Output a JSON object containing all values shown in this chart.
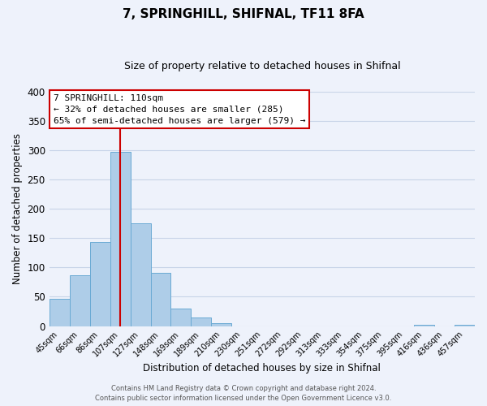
{
  "title": "7, SPRINGHILL, SHIFNAL, TF11 8FA",
  "subtitle": "Size of property relative to detached houses in Shifnal",
  "xlabel": "Distribution of detached houses by size in Shifnal",
  "ylabel": "Number of detached properties",
  "bar_labels": [
    "45sqm",
    "66sqm",
    "86sqm",
    "107sqm",
    "127sqm",
    "148sqm",
    "169sqm",
    "189sqm",
    "210sqm",
    "230sqm",
    "251sqm",
    "272sqm",
    "292sqm",
    "313sqm",
    "333sqm",
    "354sqm",
    "375sqm",
    "395sqm",
    "416sqm",
    "436sqm",
    "457sqm"
  ],
  "bar_values": [
    47,
    86,
    144,
    297,
    175,
    91,
    30,
    14,
    5,
    0,
    0,
    0,
    0,
    0,
    0,
    0,
    0,
    0,
    2,
    0,
    2
  ],
  "bar_color": "#aecde8",
  "bar_edge_color": "#6aaad4",
  "vline_x": 3.5,
  "vline_color": "#cc0000",
  "annotation_title": "7 SPRINGHILL: 110sqm",
  "annotation_line1": "← 32% of detached houses are smaller (285)",
  "annotation_line2": "65% of semi-detached houses are larger (579) →",
  "annotation_box_color": "#ffffff",
  "annotation_border_color": "#cc0000",
  "ylim": [
    0,
    400
  ],
  "yticks": [
    0,
    50,
    100,
    150,
    200,
    250,
    300,
    350,
    400
  ],
  "bg_color": "#eef2fb",
  "grid_color": "#c8d4e8",
  "title_fontsize": 11,
  "subtitle_fontsize": 9,
  "footer1": "Contains HM Land Registry data © Crown copyright and database right 2024.",
  "footer2": "Contains public sector information licensed under the Open Government Licence v3.0."
}
